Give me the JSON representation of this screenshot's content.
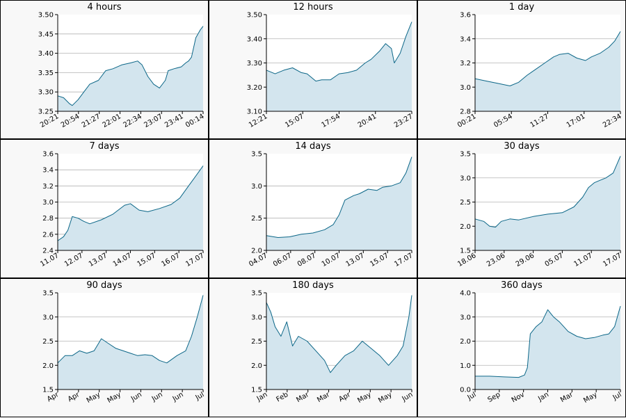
{
  "colors": {
    "line": "#0b6687",
    "fill": "#d3e5ee",
    "grid": "#b4b4b4",
    "panel_bg": "#f8f8f8",
    "plot_bg": "#ffffff"
  },
  "chart_data": [
    {
      "type": "area",
      "title": "4 hours",
      "ylim": [
        3.25,
        3.5
      ],
      "yticks": [
        "3.25",
        "3.30",
        "3.35",
        "3.40",
        "3.45",
        "3.50"
      ],
      "xticks": [
        "20:21",
        "20:54",
        "21:27",
        "22:01",
        "22:34",
        "23:07",
        "23:41",
        "00:14"
      ],
      "x": [
        0,
        0.04,
        0.08,
        0.1,
        0.14,
        0.18,
        0.22,
        0.28,
        0.33,
        0.38,
        0.44,
        0.5,
        0.55,
        0.58,
        0.62,
        0.66,
        0.7,
        0.74,
        0.76,
        0.8,
        0.85,
        0.88,
        0.9,
        0.92,
        0.95,
        0.98,
        1
      ],
      "y": [
        3.29,
        3.285,
        3.27,
        3.265,
        3.28,
        3.3,
        3.32,
        3.33,
        3.355,
        3.36,
        3.37,
        3.375,
        3.38,
        3.37,
        3.34,
        3.32,
        3.31,
        3.33,
        3.355,
        3.36,
        3.365,
        3.375,
        3.38,
        3.39,
        3.44,
        3.46,
        3.47
      ]
    },
    {
      "type": "area",
      "title": "12 hours",
      "ylim": [
        3.1,
        3.5
      ],
      "yticks": [
        "3.10",
        "3.20",
        "3.30",
        "3.40",
        "3.50"
      ],
      "xticks": [
        "12:21",
        "15:07",
        "17:54",
        "20:41",
        "23:27"
      ],
      "x": [
        0,
        0.06,
        0.12,
        0.18,
        0.24,
        0.28,
        0.34,
        0.38,
        0.44,
        0.5,
        0.56,
        0.62,
        0.68,
        0.72,
        0.78,
        0.82,
        0.86,
        0.88,
        0.92,
        0.96,
        1
      ],
      "y": [
        3.27,
        3.255,
        3.27,
        3.28,
        3.26,
        3.255,
        3.225,
        3.23,
        3.23,
        3.255,
        3.26,
        3.27,
        3.3,
        3.315,
        3.35,
        3.38,
        3.36,
        3.3,
        3.34,
        3.41,
        3.47
      ]
    },
    {
      "type": "area",
      "title": "1 day",
      "ylim": [
        2.8,
        3.6
      ],
      "yticks": [
        "2.8",
        "3.0",
        "3.2",
        "3.4",
        "3.6"
      ],
      "xticks": [
        "00:21",
        "05:54",
        "11:27",
        "17:01",
        "22:34"
      ],
      "x": [
        0,
        0.08,
        0.16,
        0.24,
        0.3,
        0.36,
        0.42,
        0.48,
        0.54,
        0.58,
        0.64,
        0.7,
        0.76,
        0.8,
        0.86,
        0.92,
        0.96,
        1
      ],
      "y": [
        3.07,
        3.05,
        3.03,
        3.01,
        3.04,
        3.1,
        3.15,
        3.2,
        3.25,
        3.27,
        3.28,
        3.24,
        3.22,
        3.25,
        3.28,
        3.33,
        3.38,
        3.46
      ]
    },
    {
      "type": "area",
      "title": "7 days",
      "ylim": [
        2.4,
        3.6
      ],
      "yticks": [
        "2.4",
        "2.6",
        "2.8",
        "3.0",
        "3.2",
        "3.4",
        "3.6"
      ],
      "xticks": [
        "11.07",
        "12.07",
        "13.07",
        "14.07",
        "15.07",
        "16.07",
        "17.07"
      ],
      "x": [
        0,
        0.04,
        0.07,
        0.1,
        0.14,
        0.18,
        0.22,
        0.3,
        0.38,
        0.46,
        0.5,
        0.56,
        0.62,
        0.7,
        0.78,
        0.84,
        0.9,
        0.94,
        1
      ],
      "y": [
        2.52,
        2.57,
        2.65,
        2.82,
        2.8,
        2.76,
        2.73,
        2.78,
        2.85,
        2.96,
        2.98,
        2.9,
        2.88,
        2.92,
        2.97,
        3.05,
        3.2,
        3.3,
        3.45
      ]
    },
    {
      "type": "area",
      "title": "14 days",
      "ylim": [
        2.0,
        3.5
      ],
      "yticks": [
        "2.0",
        "2.5",
        "3.0",
        "3.5"
      ],
      "xticks": [
        "04.07",
        "06.07",
        "08.07",
        "10.07",
        "13.07",
        "15.07",
        "17.07"
      ],
      "x": [
        0,
        0.08,
        0.16,
        0.24,
        0.32,
        0.4,
        0.46,
        0.5,
        0.54,
        0.6,
        0.64,
        0.7,
        0.76,
        0.8,
        0.86,
        0.92,
        0.96,
        1
      ],
      "y": [
        2.23,
        2.2,
        2.21,
        2.25,
        2.27,
        2.32,
        2.4,
        2.55,
        2.78,
        2.85,
        2.88,
        2.95,
        2.93,
        2.98,
        3.0,
        3.05,
        3.2,
        3.45
      ]
    },
    {
      "type": "area",
      "title": "30 days",
      "ylim": [
        1.5,
        3.5
      ],
      "yticks": [
        "1.5",
        "2.0",
        "2.5",
        "3.0",
        "3.5"
      ],
      "xticks": [
        "18.06",
        "23.06",
        "29.06",
        "05.07",
        "11.07",
        "17.07"
      ],
      "x": [
        0,
        0.06,
        0.1,
        0.14,
        0.18,
        0.24,
        0.3,
        0.4,
        0.5,
        0.6,
        0.68,
        0.74,
        0.78,
        0.82,
        0.86,
        0.9,
        0.95,
        1
      ],
      "y": [
        2.15,
        2.1,
        2.0,
        1.98,
        2.1,
        2.15,
        2.13,
        2.2,
        2.25,
        2.28,
        2.4,
        2.6,
        2.8,
        2.9,
        2.95,
        3.0,
        3.1,
        3.45
      ]
    },
    {
      "type": "area",
      "title": "90 days",
      "ylim": [
        1.5,
        3.5
      ],
      "yticks": [
        "1.5",
        "2.0",
        "2.5",
        "3.0",
        "3.5"
      ],
      "xticks": [
        "Apr",
        "Apr",
        "May",
        "May",
        "Jun",
        "Jun",
        "Jun",
        "Jul"
      ],
      "x": [
        0,
        0.05,
        0.1,
        0.15,
        0.2,
        0.25,
        0.3,
        0.35,
        0.4,
        0.45,
        0.5,
        0.55,
        0.6,
        0.65,
        0.7,
        0.75,
        0.82,
        0.88,
        0.92,
        0.96,
        1
      ],
      "y": [
        2.05,
        2.2,
        2.2,
        2.3,
        2.25,
        2.3,
        2.55,
        2.45,
        2.35,
        2.3,
        2.25,
        2.2,
        2.22,
        2.2,
        2.1,
        2.05,
        2.2,
        2.3,
        2.6,
        3.0,
        3.45
      ]
    },
    {
      "type": "area",
      "title": "180 days",
      "ylim": [
        1.5,
        3.5
      ],
      "yticks": [
        "1.5",
        "2.0",
        "2.5",
        "3.0",
        "3.5"
      ],
      "xticks": [
        "Jan",
        "Feb",
        "Mar",
        "Mar",
        "Apr",
        "May",
        "May",
        "Jun"
      ],
      "x": [
        0,
        0.03,
        0.06,
        0.1,
        0.14,
        0.18,
        0.22,
        0.28,
        0.34,
        0.4,
        0.44,
        0.48,
        0.54,
        0.6,
        0.66,
        0.72,
        0.78,
        0.84,
        0.9,
        0.94,
        0.98,
        1
      ],
      "y": [
        3.3,
        3.1,
        2.8,
        2.6,
        2.9,
        2.4,
        2.6,
        2.5,
        2.3,
        2.1,
        1.85,
        2.0,
        2.2,
        2.3,
        2.5,
        2.35,
        2.2,
        2.0,
        2.2,
        2.4,
        3.0,
        3.45
      ]
    },
    {
      "type": "area",
      "title": "360 days",
      "ylim": [
        0.0,
        4.0
      ],
      "yticks": [
        "0.0",
        "1.0",
        "2.0",
        "3.0",
        "4.0"
      ],
      "xticks": [
        "Jul",
        "Sep",
        "Nov",
        "Jan",
        "Mar",
        "May",
        "Jul"
      ],
      "x": [
        0,
        0.1,
        0.2,
        0.3,
        0.34,
        0.36,
        0.38,
        0.42,
        0.46,
        0.5,
        0.54,
        0.58,
        0.64,
        0.7,
        0.76,
        0.82,
        0.88,
        0.92,
        0.96,
        1
      ],
      "y": [
        0.55,
        0.55,
        0.52,
        0.5,
        0.6,
        0.9,
        2.3,
        2.6,
        2.8,
        3.3,
        3.0,
        2.8,
        2.4,
        2.2,
        2.1,
        2.15,
        2.25,
        2.3,
        2.6,
        3.45
      ]
    }
  ]
}
